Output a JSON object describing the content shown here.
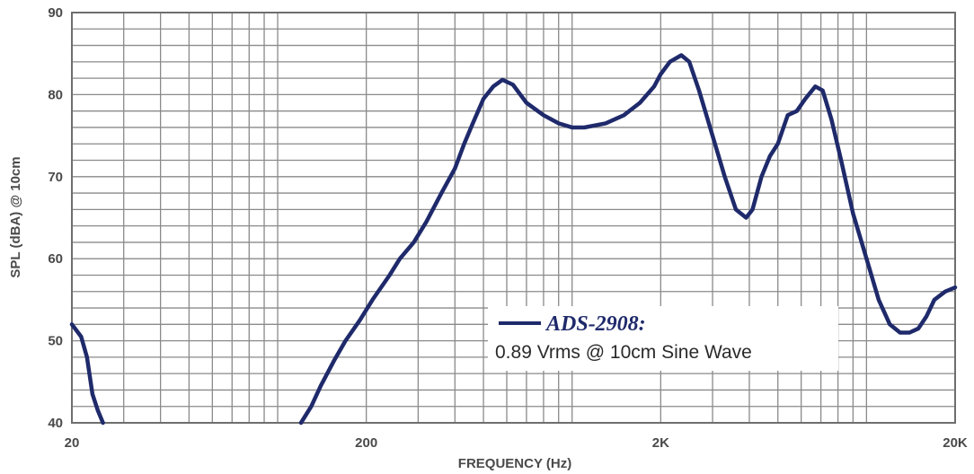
{
  "chart_data": {
    "type": "line",
    "xlabel": "FREQUENCY (Hz)",
    "ylabel": "SPL (dBA) @ 10cm",
    "x_scale": "log",
    "xlim": [
      20,
      20000
    ],
    "ylim": [
      40,
      90
    ],
    "x_ticks": [
      {
        "value": 20,
        "label": "20"
      },
      {
        "value": 200,
        "label": "200"
      },
      {
        "value": 2000,
        "label": "2K"
      },
      {
        "value": 20000,
        "label": "20K"
      }
    ],
    "y_ticks": [
      {
        "value": 40,
        "label": "40"
      },
      {
        "value": 50,
        "label": "50"
      },
      {
        "value": 60,
        "label": "60"
      },
      {
        "value": 70,
        "label": "70"
      },
      {
        "value": 80,
        "label": "80"
      },
      {
        "value": 90,
        "label": "90"
      }
    ],
    "grid": true,
    "legend_position": "bottom-center",
    "legend": {
      "name": "ADS-2908:",
      "description": "0.89 Vrms @ 10cm Sine Wave"
    },
    "line_color": "#1f2a6b",
    "series": [
      {
        "name": "ADS-2908:",
        "points": [
          [
            20,
            52
          ],
          [
            21.5,
            50.5
          ],
          [
            22.5,
            48
          ],
          [
            23.5,
            43.5
          ],
          [
            24.5,
            41.5
          ],
          [
            25.5,
            40
          ],
          [
            120,
            40
          ],
          [
            130,
            42
          ],
          [
            140,
            44.5
          ],
          [
            155,
            47.5
          ],
          [
            170,
            50
          ],
          [
            190,
            52.5
          ],
          [
            210,
            55
          ],
          [
            240,
            58
          ],
          [
            260,
            60
          ],
          [
            290,
            62
          ],
          [
            320,
            64.5
          ],
          [
            360,
            68
          ],
          [
            400,
            71
          ],
          [
            430,
            74
          ],
          [
            460,
            76.5
          ],
          [
            500,
            79.5
          ],
          [
            540,
            81
          ],
          [
            580,
            81.8
          ],
          [
            630,
            81.2
          ],
          [
            700,
            79
          ],
          [
            800,
            77.5
          ],
          [
            900,
            76.5
          ],
          [
            1000,
            76
          ],
          [
            1100,
            76
          ],
          [
            1300,
            76.5
          ],
          [
            1500,
            77.5
          ],
          [
            1700,
            79
          ],
          [
            1900,
            81
          ],
          [
            2000,
            82.5
          ],
          [
            2150,
            84
          ],
          [
            2350,
            84.8
          ],
          [
            2500,
            84
          ],
          [
            2700,
            80.5
          ],
          [
            3000,
            75
          ],
          [
            3300,
            70
          ],
          [
            3600,
            66
          ],
          [
            3900,
            65
          ],
          [
            4100,
            66
          ],
          [
            4400,
            70
          ],
          [
            4700,
            72.5
          ],
          [
            5000,
            74
          ],
          [
            5400,
            77.5
          ],
          [
            5800,
            78
          ],
          [
            6200,
            79.5
          ],
          [
            6700,
            81
          ],
          [
            7100,
            80.5
          ],
          [
            7600,
            77
          ],
          [
            8200,
            72
          ],
          [
            9000,
            65.5
          ],
          [
            10000,
            60
          ],
          [
            11000,
            55
          ],
          [
            12000,
            52
          ],
          [
            13000,
            51
          ],
          [
            14000,
            51
          ],
          [
            15000,
            51.5
          ],
          [
            16000,
            53
          ],
          [
            17000,
            55
          ],
          [
            18500,
            56
          ],
          [
            20000,
            56.5
          ]
        ]
      }
    ]
  }
}
